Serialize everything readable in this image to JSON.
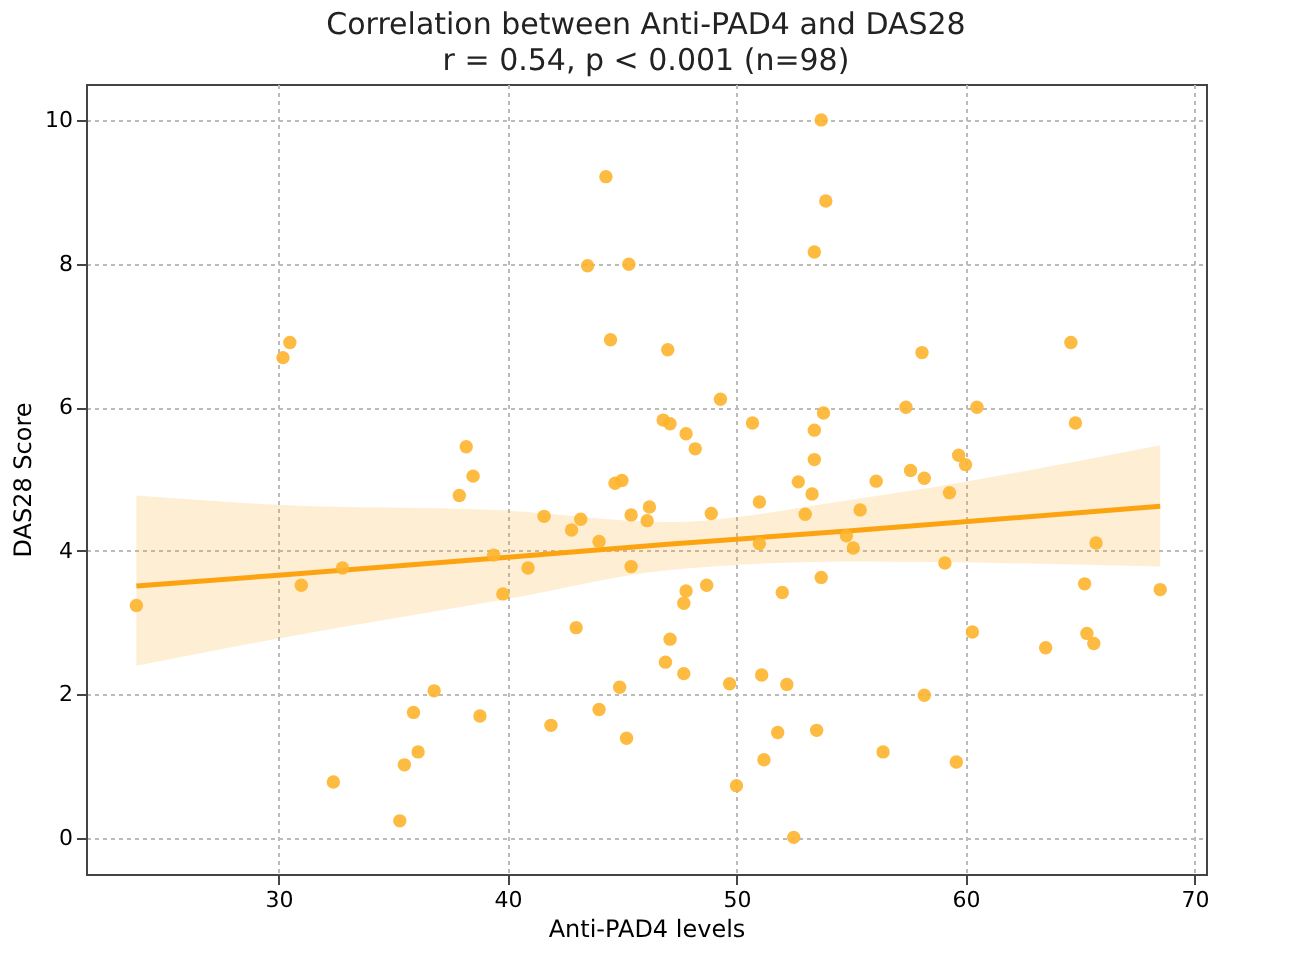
{
  "chart_data": {
    "type": "scatter",
    "title": "Correlation between Anti-PAD4 and DAS28",
    "subtitle": "r = 0.54, p < 0.001 (n=98)",
    "xlabel": "Anti-PAD4 levels",
    "ylabel": "DAS28 Score",
    "xlim": [
      21.6,
      70.5
    ],
    "xticks": [
      30,
      40,
      50,
      60,
      70
    ],
    "ylim": [
      -0.5,
      10.5
    ],
    "yticks": [
      0,
      2,
      4,
      6,
      8,
      10
    ],
    "grid": true,
    "series": [
      {
        "marker": "circle",
        "color": "#fdb42c",
        "x": [
          23.8,
          30.2,
          30.5,
          31.0,
          32.8,
          32.4,
          35.3,
          35.5,
          36.1,
          35.9,
          36.8,
          38.2,
          38.5,
          37.9,
          39.4,
          39.8,
          38.8,
          40.9,
          41.6,
          41.9,
          42.8,
          43.2,
          43.0,
          43.5,
          44.3,
          44.5,
          44.0,
          44.0,
          44.7,
          45.0,
          45.3,
          45.4,
          45.4,
          44.9,
          45.2,
          46.2,
          46.1,
          47.0,
          46.8,
          47.1,
          47.8,
          48.2,
          47.1,
          46.9,
          47.7,
          47.8,
          47.7,
          48.7,
          48.9,
          49.3,
          49.7,
          50.0,
          50.7,
          51.0,
          51.0,
          51.1,
          51.2,
          51.8,
          52.2,
          52.0,
          52.5,
          52.7,
          53.0,
          53.3,
          53.4,
          53.4,
          53.8,
          53.4,
          53.7,
          53.9,
          53.7,
          53.5,
          54.8,
          55.1,
          55.4,
          56.1,
          56.4,
          57.4,
          57.6,
          58.1,
          58.2,
          58.2,
          59.1,
          59.3,
          59.6,
          59.7,
          60.0,
          60.3,
          60.5,
          63.5,
          64.6,
          64.8,
          65.2,
          65.3,
          65.6,
          65.7,
          68.5
        ],
        "values": [
          3.24,
          6.69,
          6.9,
          3.52,
          3.76,
          0.78,
          0.24,
          1.02,
          1.2,
          1.75,
          2.05,
          5.45,
          5.04,
          4.77,
          3.94,
          3.4,
          1.7,
          3.76,
          4.48,
          1.57,
          4.29,
          4.44,
          2.93,
          7.97,
          9.21,
          6.94,
          4.13,
          1.79,
          4.94,
          4.98,
          7.99,
          4.5,
          3.78,
          2.1,
          1.39,
          4.61,
          4.42,
          6.8,
          5.82,
          5.77,
          5.63,
          5.42,
          2.77,
          2.45,
          2.29,
          3.44,
          3.27,
          3.52,
          4.52,
          6.11,
          2.15,
          0.73,
          5.78,
          4.68,
          4.1,
          2.27,
          1.09,
          1.47,
          2.14,
          3.42,
          0.01,
          4.96,
          4.51,
          4.79,
          5.27,
          5.68,
          5.92,
          8.16,
          10.0,
          8.87,
          3.63,
          1.5,
          4.21,
          4.04,
          4.57,
          4.97,
          1.2,
          6.0,
          5.12,
          6.76,
          5.01,
          1.99,
          3.83,
          4.81,
          1.06,
          5.33,
          5.2,
          2.87,
          6.0,
          2.65,
          6.9,
          5.78,
          3.54,
          2.85,
          2.71,
          4.11,
          3.46
        ]
      },
      {
        "type": "line",
        "color": "#fca311",
        "x": [
          23.8,
          30,
          40,
          47,
          55,
          68.5
        ],
        "values": [
          3.51,
          3.66,
          3.91,
          4.09,
          4.28,
          4.62
        ],
        "lower": [
          2.4,
          2.78,
          3.33,
          3.73,
          3.85,
          3.78
        ],
        "upper": [
          4.77,
          4.64,
          4.56,
          4.4,
          4.71,
          5.47
        ]
      }
    ]
  }
}
